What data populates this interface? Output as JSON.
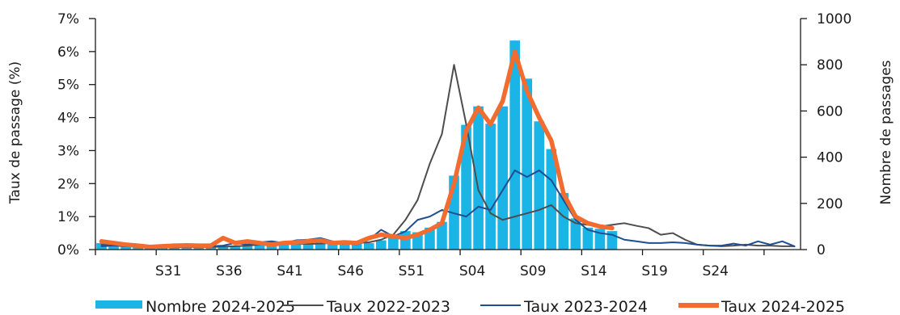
{
  "chart_data": {
    "type": "bar+line",
    "x_tick_labels": [
      "S31",
      "S36",
      "S41",
      "S46",
      "S51",
      "S04",
      "S09",
      "S14",
      "S19",
      "S24"
    ],
    "y_left": {
      "label": "Taux de passage (%)",
      "min": 0,
      "max": 7,
      "ticks": [
        "0%",
        "1%",
        "2%",
        "3%",
        "4%",
        "5%",
        "6%",
        "7%"
      ]
    },
    "y_right": {
      "label": "Nombre de passages",
      "min": 0,
      "max": 1000,
      "ticks": [
        "0",
        "200",
        "400",
        "600",
        "800",
        "1000"
      ]
    },
    "colors": {
      "bars": "#1ab4e6",
      "taux_2022_2023": "#4d4d4d",
      "taux_2023_2024": "#1f4e91",
      "taux_2024_2025": "#f26b2f",
      "axis": "#1a1a1a"
    },
    "series": [
      {
        "name": "Nombre 2024-2025",
        "kind": "bar",
        "axis": "right",
        "start_index": 0,
        "values": [
          28,
          20,
          17,
          15,
          12,
          10,
          12,
          14,
          12,
          14,
          15,
          18,
          25,
          30,
          32,
          27,
          28,
          28,
          30,
          33,
          35,
          30,
          28,
          40,
          60,
          80,
          75,
          95,
          120,
          320,
          540,
          620,
          545,
          620,
          905,
          740,
          555,
          435,
          245,
          135,
          95,
          90,
          80
        ]
      },
      {
        "name": "Taux 2022-2023",
        "kind": "line",
        "axis": "left",
        "start_index": 0,
        "values": [
          0.15,
          0.12,
          0.1,
          0.08,
          0.07,
          0.06,
          0.07,
          0.08,
          0.07,
          0.08,
          0.09,
          0.1,
          0.12,
          0.15,
          0.18,
          0.2,
          0.18,
          0.17,
          0.18,
          0.2,
          0.2,
          0.2,
          0.22,
          0.3,
          0.45,
          0.9,
          1.5,
          2.6,
          3.5,
          5.6,
          3.8,
          1.8,
          1.1,
          0.9,
          1.0,
          1.1,
          1.2,
          1.35,
          1.0,
          0.8,
          0.75,
          0.7,
          0.75,
          0.8,
          0.72,
          0.65,
          0.45,
          0.5,
          0.3,
          0.15,
          0.12,
          0.1,
          0.12,
          0.15,
          0.12,
          0.12,
          0.1,
          0.1
        ]
      },
      {
        "name": "Taux 2023-2024",
        "kind": "line",
        "axis": "left",
        "start_index": 0,
        "values": [
          0.1,
          0.12,
          0.15,
          0.1,
          0.07,
          0.09,
          0.1,
          0.08,
          0.12,
          0.1,
          0.12,
          0.2,
          0.15,
          0.22,
          0.25,
          0.2,
          0.28,
          0.3,
          0.35,
          0.25,
          0.2,
          0.15,
          0.3,
          0.6,
          0.4,
          0.55,
          0.9,
          1.0,
          1.2,
          1.1,
          1.0,
          1.3,
          1.2,
          1.8,
          2.4,
          2.2,
          2.4,
          2.1,
          1.5,
          0.9,
          0.6,
          0.5,
          0.45,
          0.3,
          0.25,
          0.2,
          0.2,
          0.22,
          0.2,
          0.15,
          0.12,
          0.12,
          0.18,
          0.12,
          0.25,
          0.15,
          0.25,
          0.1
        ]
      },
      {
        "name": "Taux 2024-2025",
        "kind": "line",
        "axis": "left",
        "start_index": 0,
        "values": [
          0.25,
          0.2,
          0.15,
          0.12,
          0.08,
          0.1,
          0.12,
          0.13,
          0.12,
          0.12,
          0.35,
          0.2,
          0.25,
          0.2,
          0.15,
          0.2,
          0.22,
          0.25,
          0.28,
          0.2,
          0.22,
          0.2,
          0.35,
          0.45,
          0.4,
          0.35,
          0.45,
          0.6,
          0.8,
          2.0,
          3.6,
          4.3,
          3.8,
          4.5,
          6.0,
          4.8,
          4.0,
          3.3,
          1.7,
          1.0,
          0.8,
          0.7,
          0.65
        ]
      }
    ],
    "legend": {
      "position": "bottom"
    }
  }
}
